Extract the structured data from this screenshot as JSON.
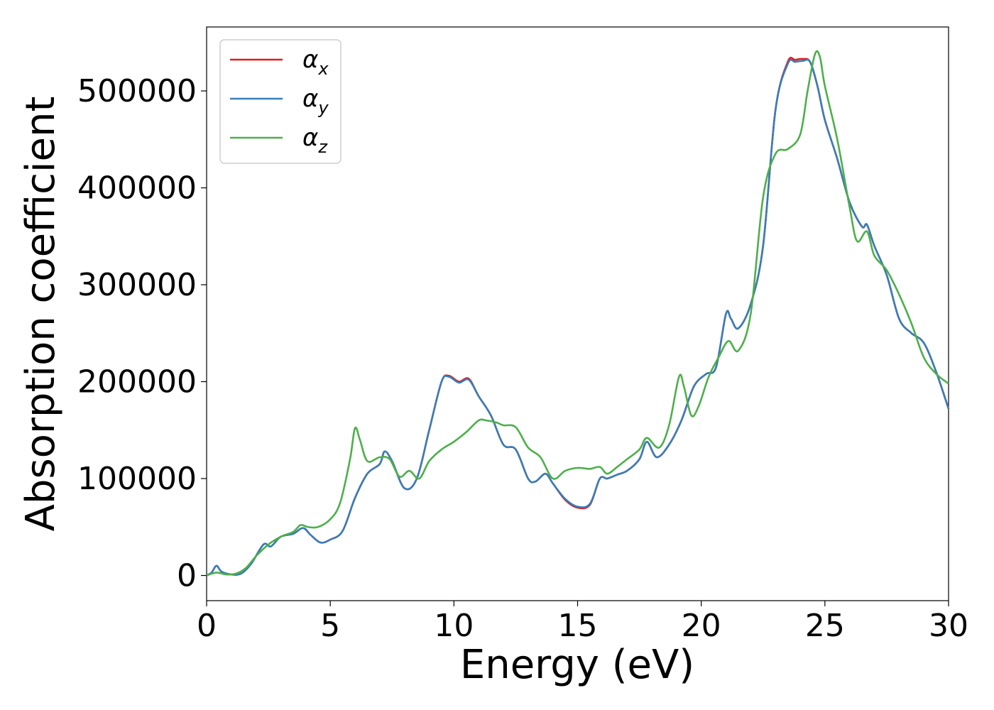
{
  "chart_data": {
    "type": "line",
    "xlabel": "Energy (eV)",
    "ylabel": "Absorption coefficient",
    "xlim": [
      0,
      30
    ],
    "ylim": [
      -26000,
      566000
    ],
    "xticks": [
      0,
      5,
      10,
      15,
      20,
      25,
      30
    ],
    "yticks": [
      0,
      100000,
      200000,
      300000,
      400000,
      500000
    ],
    "grid": false,
    "legend_position": "top-left",
    "series": [
      {
        "name": "α",
        "sub": "x",
        "color": "#e41a1c",
        "x": [
          0,
          0.2,
          0.4,
          0.6,
          1.0,
          1.4,
          1.8,
          2.3,
          2.6,
          3.0,
          3.5,
          3.9,
          4.2,
          4.6,
          5.0,
          5.5,
          6.0,
          6.5,
          7.0,
          7.2,
          7.5,
          8.0,
          8.5,
          9.0,
          9.5,
          9.8,
          10.2,
          10.6,
          11.0,
          11.5,
          12.0,
          12.5,
          13.0,
          13.3,
          13.7,
          14.0,
          14.5,
          15.0,
          15.5,
          15.9,
          16.2,
          16.6,
          17.0,
          17.5,
          17.8,
          18.2,
          18.7,
          19.2,
          19.7,
          20.2,
          20.6,
          21.0,
          21.2,
          21.5,
          22.0,
          22.5,
          23.0,
          23.5,
          23.8,
          24.1,
          24.4,
          24.7,
          25.0,
          25.5,
          26.0,
          26.5,
          26.7,
          27.0,
          27.5,
          28.0,
          28.5,
          29.0,
          29.5,
          30.0
        ],
        "values": [
          0,
          3000,
          10000,
          4000,
          1000,
          2000,
          12000,
          32000,
          30000,
          40000,
          43000,
          49000,
          42000,
          34000,
          37000,
          46000,
          80000,
          105000,
          115000,
          128000,
          118000,
          90000,
          100000,
          150000,
          200000,
          206000,
          200000,
          203000,
          185000,
          165000,
          135000,
          130000,
          100000,
          97000,
          105000,
          95000,
          78000,
          70000,
          73000,
          100000,
          100000,
          104000,
          108000,
          120000,
          138000,
          122000,
          135000,
          160000,
          195000,
          208000,
          215000,
          270000,
          265000,
          255000,
          280000,
          340000,
          480000,
          530000,
          532000,
          533000,
          530000,
          505000,
          470000,
          430000,
          385000,
          360000,
          362000,
          340000,
          310000,
          265000,
          250000,
          240000,
          210000,
          172000
        ]
      },
      {
        "name": "α",
        "sub": "y",
        "color": "#377eb8",
        "x": [
          0,
          0.2,
          0.4,
          0.6,
          1.0,
          1.4,
          1.8,
          2.3,
          2.6,
          3.0,
          3.5,
          3.9,
          4.2,
          4.6,
          5.0,
          5.5,
          6.0,
          6.5,
          7.0,
          7.2,
          7.5,
          8.0,
          8.5,
          9.0,
          9.5,
          9.8,
          10.2,
          10.6,
          11.0,
          11.5,
          12.0,
          12.5,
          13.0,
          13.3,
          13.7,
          14.0,
          14.5,
          15.0,
          15.5,
          15.9,
          16.2,
          16.6,
          17.0,
          17.5,
          17.8,
          18.2,
          18.7,
          19.2,
          19.7,
          20.2,
          20.6,
          21.0,
          21.2,
          21.5,
          22.0,
          22.5,
          23.0,
          23.5,
          23.8,
          24.1,
          24.4,
          24.7,
          25.0,
          25.5,
          26.0,
          26.5,
          26.7,
          27.0,
          27.5,
          28.0,
          28.5,
          29.0,
          29.5,
          30.0
        ],
        "values": [
          0,
          3000,
          10000,
          4000,
          1000,
          2000,
          12000,
          32000,
          30000,
          40000,
          43000,
          49000,
          42000,
          34000,
          37000,
          46000,
          80000,
          105000,
          115000,
          128000,
          118000,
          90000,
          100000,
          150000,
          200000,
          205000,
          199000,
          202000,
          185000,
          165000,
          135000,
          130000,
          100000,
          97000,
          105000,
          95000,
          79000,
          71000,
          74000,
          100000,
          100000,
          104000,
          108000,
          120000,
          138000,
          122000,
          135000,
          160000,
          195000,
          208000,
          215000,
          270000,
          265000,
          255000,
          280000,
          340000,
          480000,
          528000,
          530000,
          531000,
          530000,
          505000,
          470000,
          430000,
          385000,
          360000,
          362000,
          340000,
          310000,
          265000,
          250000,
          240000,
          210000,
          172000
        ]
      },
      {
        "name": "α",
        "sub": "z",
        "color": "#4daf4a",
        "x": [
          0,
          0.4,
          0.8,
          1.2,
          1.6,
          2.0,
          2.5,
          3.0,
          3.5,
          3.8,
          4.1,
          4.5,
          5.0,
          5.4,
          5.8,
          6.0,
          6.2,
          6.5,
          7.0,
          7.4,
          7.8,
          8.2,
          8.6,
          9.0,
          9.5,
          10.0,
          10.5,
          11.0,
          11.3,
          11.7,
          12.0,
          12.5,
          13.0,
          13.5,
          14.0,
          14.5,
          15.0,
          15.5,
          15.9,
          16.2,
          16.6,
          17.0,
          17.5,
          17.8,
          18.3,
          18.7,
          19.1,
          19.3,
          19.6,
          19.9,
          20.3,
          20.7,
          21.1,
          21.5,
          22.0,
          22.5,
          23.0,
          23.5,
          24.0,
          24.3,
          24.6,
          24.8,
          25.0,
          25.5,
          26.0,
          26.3,
          26.7,
          27.0,
          27.5,
          28.0,
          28.5,
          29.0,
          29.5,
          30.0
        ],
        "values": [
          0,
          3000,
          1000,
          2000,
          8000,
          20000,
          32000,
          40000,
          45000,
          52000,
          50000,
          50000,
          58000,
          75000,
          120000,
          152000,
          140000,
          118000,
          122000,
          120000,
          102000,
          108000,
          100000,
          118000,
          130000,
          138000,
          148000,
          160000,
          160000,
          158000,
          155000,
          153000,
          132000,
          122000,
          100000,
          108000,
          111000,
          110000,
          112000,
          105000,
          112000,
          120000,
          130000,
          142000,
          132000,
          155000,
          205000,
          195000,
          165000,
          175000,
          205000,
          225000,
          242000,
          232000,
          270000,
          390000,
          435000,
          440000,
          455000,
          500000,
          538000,
          535000,
          505000,
          450000,
          380000,
          345000,
          355000,
          330000,
          315000,
          290000,
          260000,
          225000,
          208000,
          198000
        ]
      }
    ]
  }
}
